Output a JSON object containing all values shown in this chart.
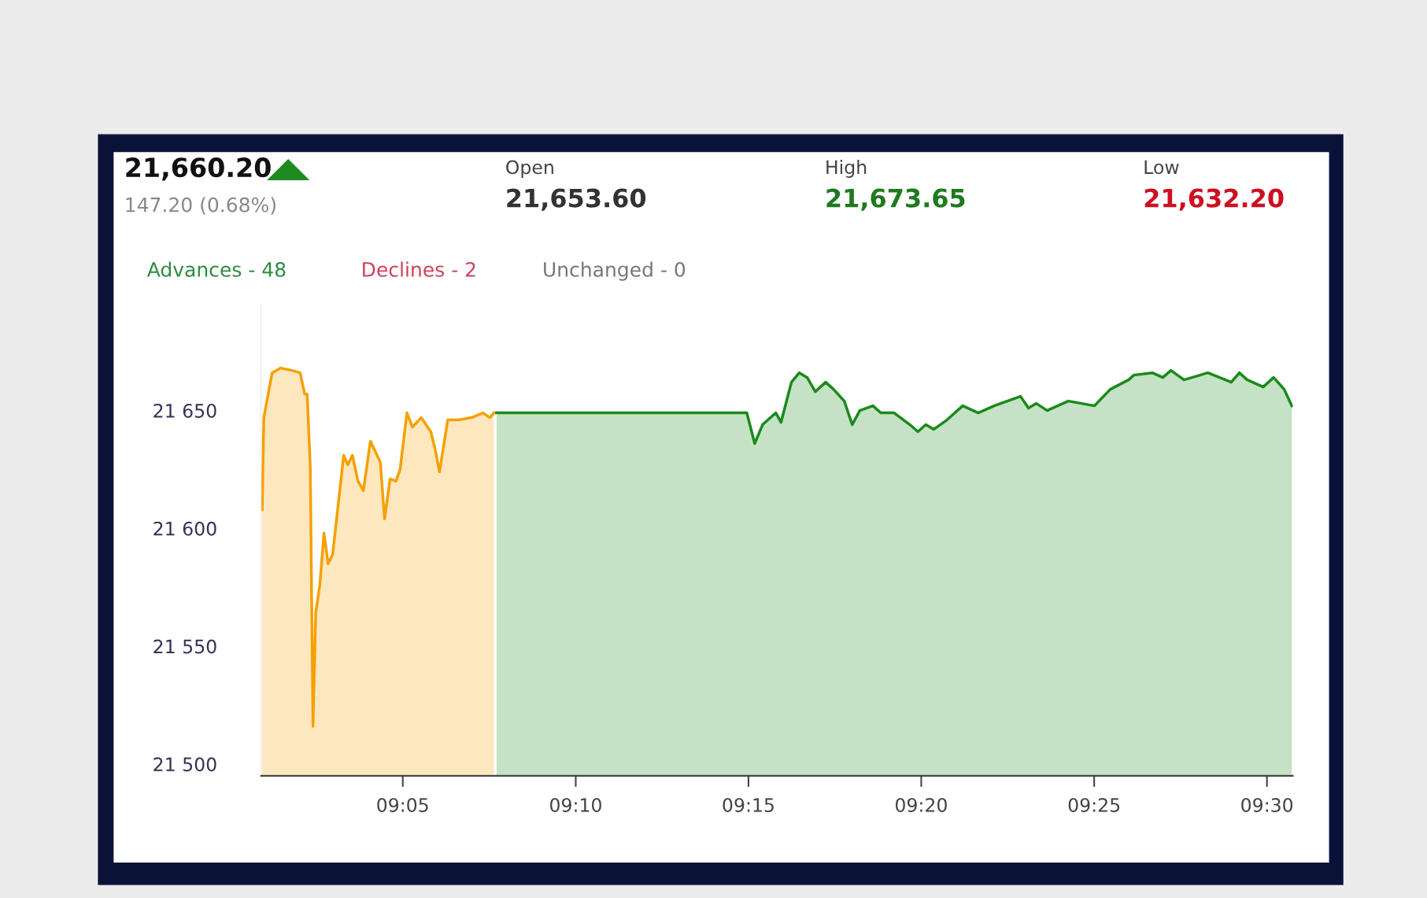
{
  "chart_data": {
    "type": "area",
    "title": "21,660.20",
    "subtitle": "147.20 (0.68%)",
    "annotations": [
      "Open",
      "21,653.60",
      "High",
      "21,673.65",
      "Low",
      "21,632.20",
      "Advances - 48",
      "Declines - 2",
      "Unchanged - 0"
    ],
    "series": [
      {
        "color": "#f5a000",
        "x": [
          9.0155,
          9.0163,
          9.0203,
          9.0243,
          9.0298,
          9.0338,
          9.036,
          9.0372,
          9.0387,
          9.04,
          9.0413,
          9.0433,
          9.0453,
          9.0473,
          9.0495,
          9.0548,
          9.0568,
          9.059,
          9.0617,
          9.0643,
          9.0677,
          9.0725,
          9.0745,
          9.0772,
          9.08,
          9.082,
          9.0853,
          9.088,
          9.0922,
          9.0968,
          9.0988,
          9.101,
          9.105,
          9.1103,
          9.1165,
          9.122,
          9.1253,
          9.1273
        ],
        "values": [
          21608,
          21647,
          21666,
          21668,
          21667,
          21666,
          21657,
          21657,
          21626,
          21516,
          21564,
          21576,
          21598,
          21585,
          21589,
          21631,
          21627,
          21631,
          21620,
          21616,
          21637,
          21628,
          21604,
          21621,
          21620,
          21625,
          21649,
          21643,
          21647,
          21641,
          21634,
          21624,
          21646,
          21646,
          21647,
          21649,
          21647,
          21649
        ]
      },
      {
        "color": "#1a8a1a",
        "x": [
          9.1285,
          9.2492,
          9.253,
          9.2568,
          9.2632,
          9.2657,
          9.2707,
          9.2745,
          9.2783,
          9.2822,
          9.2872,
          9.291,
          9.2962,
          9.3,
          9.3037,
          9.31,
          9.3138,
          9.3202,
          9.3278,
          9.3317,
          9.3355,
          9.3393,
          9.3457,
          9.3533,
          9.3608,
          9.3685,
          9.3812,
          9.385,
          9.3888,
          9.394,
          9.4042,
          9.4168,
          9.4245,
          9.4333,
          9.4358,
          9.4447,
          9.4498,
          9.4537,
          9.46,
          9.4715,
          9.4828,
          9.4867,
          9.4905,
          9.4982,
          9.5032,
          9.5083,
          9.512
        ],
        "values": [
          21649,
          21649,
          21636,
          21644,
          21649,
          21645,
          21662,
          21666,
          21664,
          21658,
          21662,
          21659,
          21654,
          21644,
          21650,
          21652,
          21649,
          21649,
          21644,
          21641,
          21644,
          21642,
          21646,
          21652,
          21649,
          21652,
          21656,
          21651,
          21653,
          21650,
          21654,
          21652,
          21659,
          21663,
          21665,
          21666,
          21664,
          21667,
          21663,
          21666,
          21662,
          21666,
          21663,
          21660,
          21664,
          21659,
          21652
        ]
      }
    ],
    "xlim": [
      9.015,
      9.5125
    ],
    "xticks": [
      {
        "value": 9.0833,
        "label": "09:05"
      },
      {
        "value": 9.1667,
        "label": "09:10"
      },
      {
        "value": 9.25,
        "label": "09:15"
      },
      {
        "value": 9.3333,
        "label": "09:20"
      },
      {
        "value": 9.4167,
        "label": "09:25"
      },
      {
        "value": 9.5,
        "label": "09:30"
      }
    ],
    "ylim": [
      21495,
      21695
    ],
    "yticks": [
      {
        "value": 21500,
        "label": "21 500"
      },
      {
        "value": 21550,
        "label": "21 550"
      },
      {
        "value": 21600,
        "label": "21 600"
      },
      {
        "value": 21650,
        "label": "21 650"
      }
    ],
    "grid": false,
    "legend": false
  }
}
